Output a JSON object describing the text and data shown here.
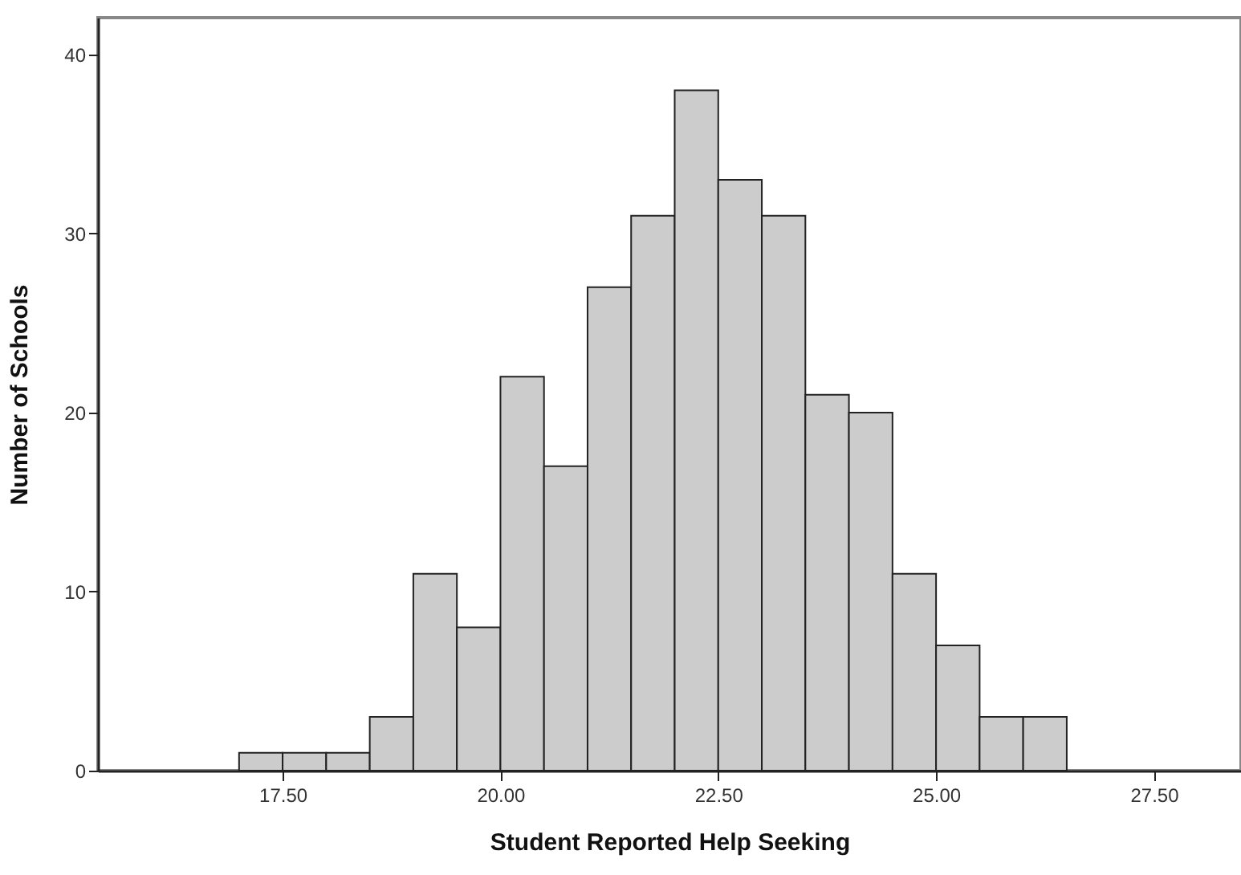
{
  "chart_data": {
    "type": "histogram",
    "xlabel": "Student Reported Help Seeking",
    "ylabel": "Number of Schools",
    "bins": [
      17.0,
      17.5,
      18.0,
      18.5,
      19.0,
      19.5,
      20.0,
      20.5,
      21.0,
      21.5,
      22.0,
      22.5,
      23.0,
      23.5,
      24.0,
      24.5,
      25.0,
      25.5,
      26.0,
      26.5
    ],
    "values": [
      1,
      1,
      1,
      3,
      11,
      8,
      22,
      17,
      27,
      31,
      38,
      33,
      31,
      21,
      20,
      11,
      7,
      3,
      3
    ],
    "color": "#cccccc",
    "xlim": [
      15.38,
      28.5
    ],
    "ylim": [
      0,
      42.06
    ],
    "xticks": [
      {
        "value": 17.5,
        "label": "17.50"
      },
      {
        "value": 20,
        "label": "20.00"
      },
      {
        "value": 22.5,
        "label": "22.50"
      },
      {
        "value": 25,
        "label": "25.00"
      },
      {
        "value": 27.5,
        "label": "27.50"
      }
    ],
    "yticks": [
      0,
      10,
      20,
      30,
      40
    ],
    "grid": false
  }
}
